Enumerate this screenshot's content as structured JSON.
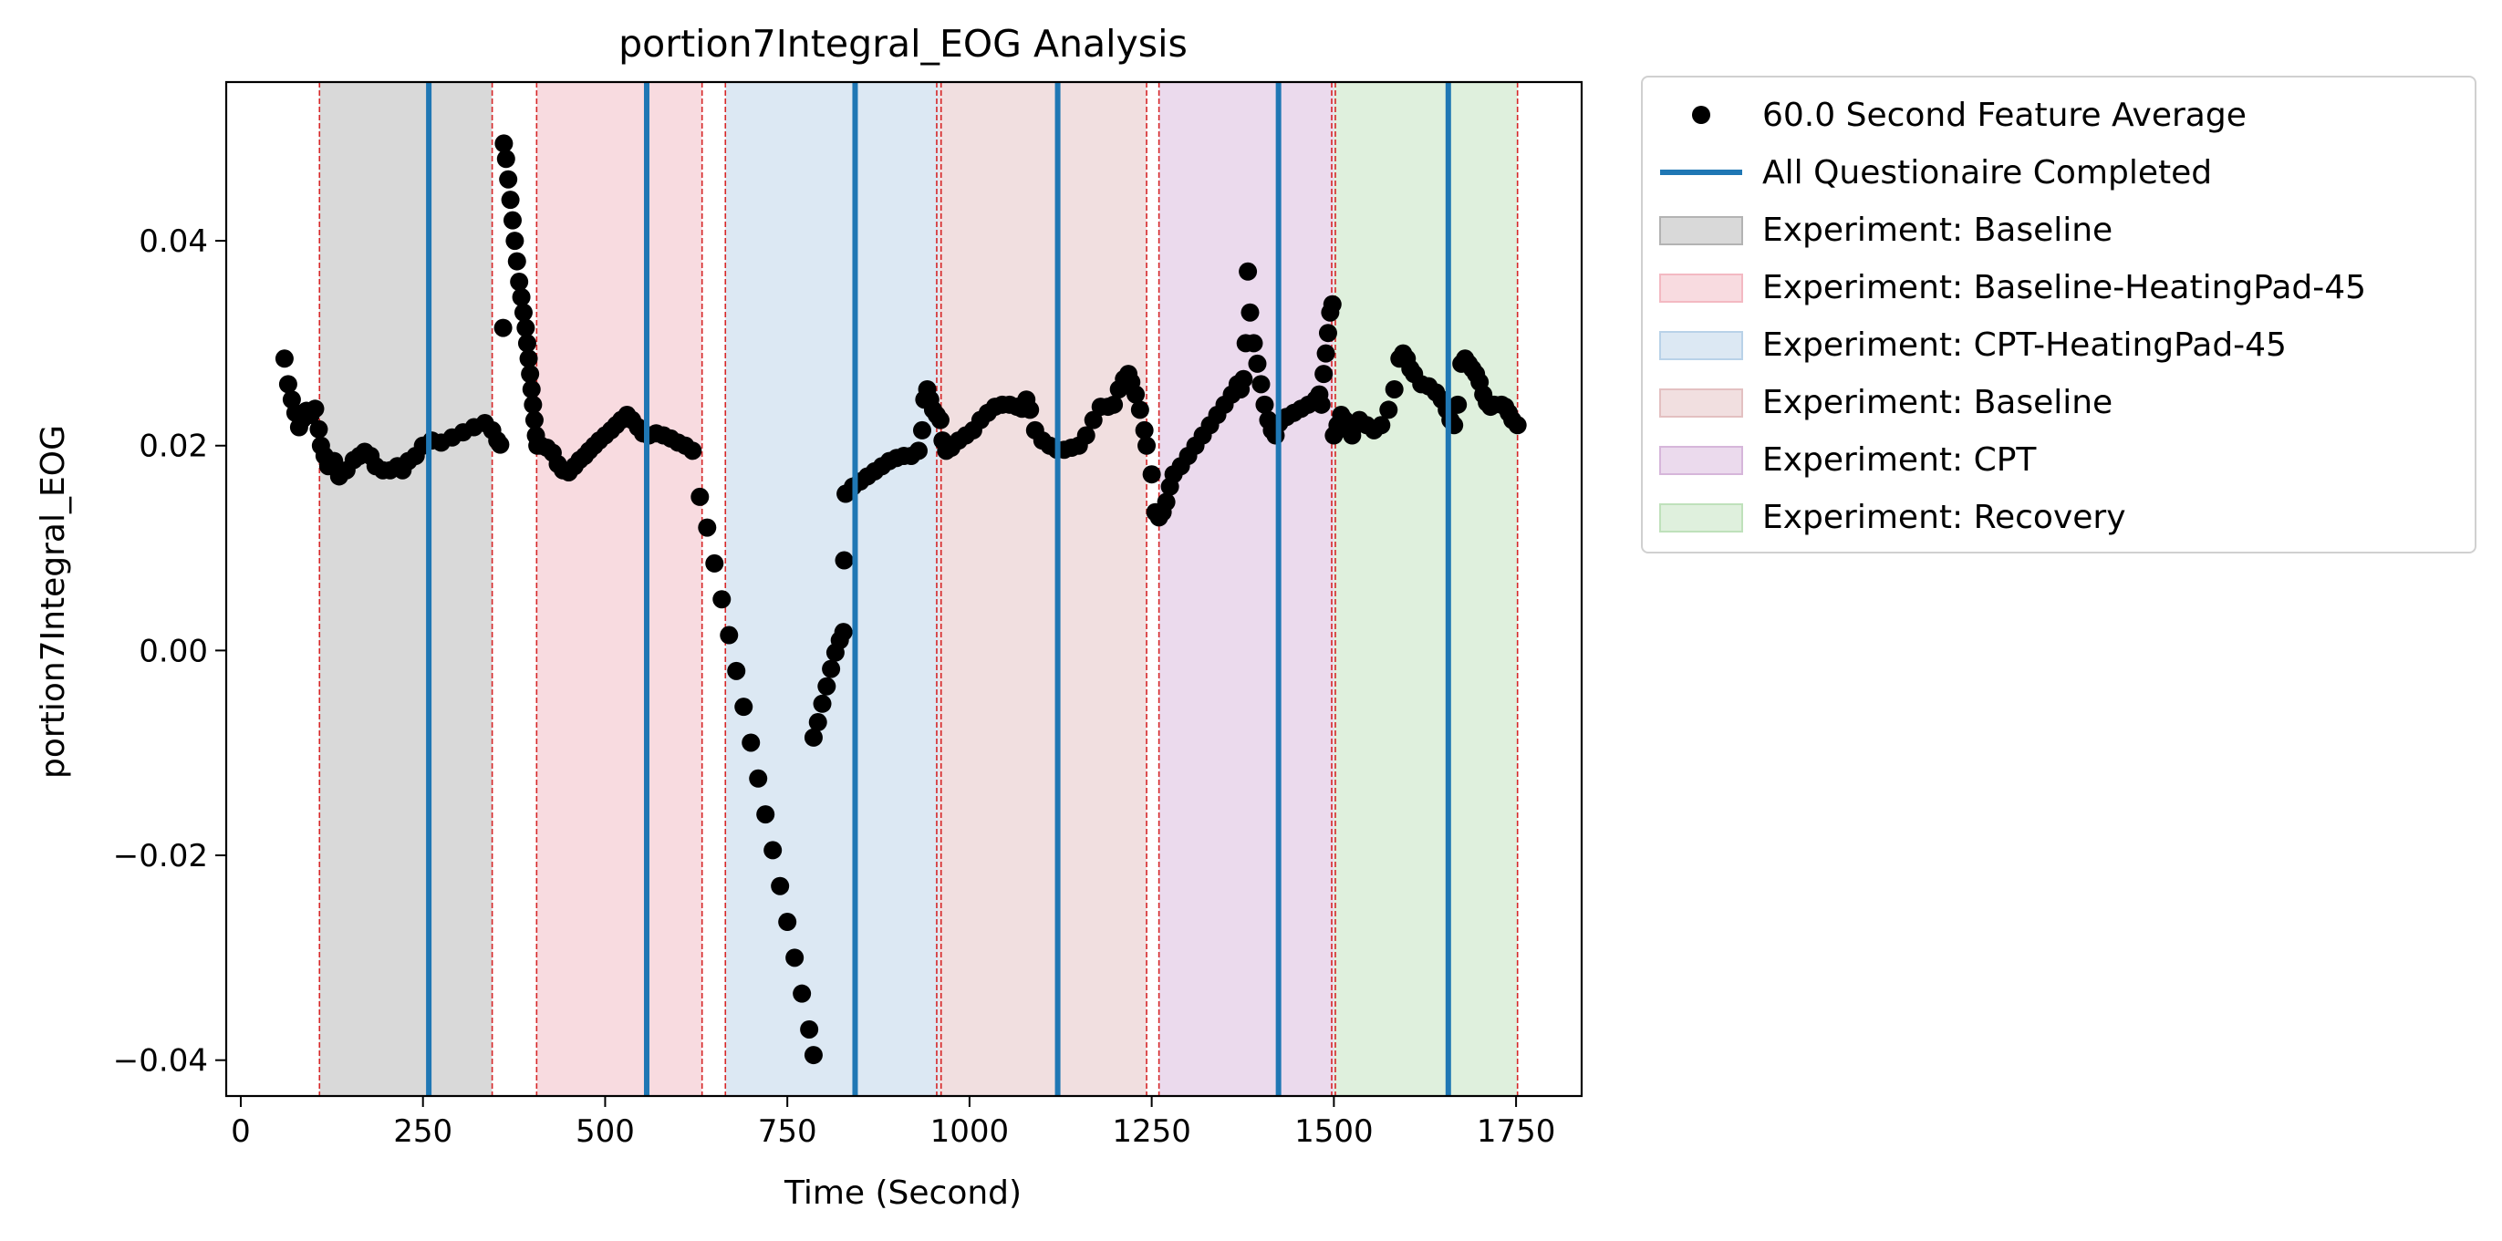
{
  "chart_data": {
    "type": "scatter",
    "title": "portion7Integral_EOG Analysis",
    "xlabel": "Time (Second)",
    "ylabel": "portion7Integral_EOG",
    "xlim": [
      -20,
      1840
    ],
    "ylim": [
      -0.0435,
      0.0555
    ],
    "x_ticks": [
      0,
      250,
      500,
      750,
      1000,
      1250,
      1500,
      1750
    ],
    "x_tick_labels": [
      "0",
      "250",
      "500",
      "750",
      "1000",
      "1250",
      "1500",
      "1750"
    ],
    "y_ticks": [
      -0.04,
      -0.02,
      0.0,
      0.02,
      0.04
    ],
    "y_tick_labels": [
      "−0.04",
      "−0.02",
      "0.00",
      "0.02",
      "0.04"
    ],
    "grid": false,
    "legend_position": "outside-right-top",
    "series": [
      {
        "name": "60.0 Second Feature Average",
        "kind": "scatter",
        "color": "#000000",
        "points": [
          [
            60,
            0.0285
          ],
          [
            65,
            0.026
          ],
          [
            70,
            0.0245
          ],
          [
            75,
            0.0232
          ],
          [
            80,
            0.0218
          ],
          [
            85,
            0.0226
          ],
          [
            90,
            0.0234
          ],
          [
            96,
            0.023
          ],
          [
            102,
            0.0236
          ],
          [
            107,
            0.0216
          ],
          [
            110,
            0.02
          ],
          [
            115,
            0.019
          ],
          [
            120,
            0.018
          ],
          [
            128,
            0.0185
          ],
          [
            135,
            0.017
          ],
          [
            145,
            0.0176
          ],
          [
            155,
            0.0186
          ],
          [
            163,
            0.019
          ],
          [
            170,
            0.0194
          ],
          [
            178,
            0.019
          ],
          [
            185,
            0.018
          ],
          [
            195,
            0.0176
          ],
          [
            205,
            0.0176
          ],
          [
            215,
            0.018
          ],
          [
            222,
            0.0176
          ],
          [
            230,
            0.0185
          ],
          [
            240,
            0.019
          ],
          [
            250,
            0.02
          ],
          [
            262,
            0.0205
          ],
          [
            275,
            0.0203
          ],
          [
            290,
            0.0208
          ],
          [
            305,
            0.0213
          ],
          [
            320,
            0.0218
          ],
          [
            335,
            0.0222
          ],
          [
            345,
            0.0215
          ],
          [
            352,
            0.0205
          ],
          [
            356,
            0.0201
          ],
          [
            361,
            0.0495
          ],
          [
            364,
            0.048
          ],
          [
            367,
            0.046
          ],
          [
            370,
            0.044
          ],
          [
            373,
            0.042
          ],
          [
            376,
            0.04
          ],
          [
            379,
            0.038
          ],
          [
            382,
            0.036
          ],
          [
            385,
            0.0345
          ],
          [
            388,
            0.033
          ],
          [
            391,
            0.0315
          ],
          [
            393,
            0.03
          ],
          [
            395,
            0.0285
          ],
          [
            397,
            0.027
          ],
          [
            399,
            0.0255
          ],
          [
            401,
            0.024
          ],
          [
            403,
            0.0225
          ],
          [
            405,
            0.021
          ],
          [
            407,
            0.02
          ],
          [
            360,
            0.0315
          ],
          [
            412,
            0.02
          ],
          [
            420,
            0.0198
          ],
          [
            428,
            0.0193
          ],
          [
            435,
            0.0182
          ],
          [
            442,
            0.0176
          ],
          [
            450,
            0.0174
          ],
          [
            458,
            0.018
          ],
          [
            465,
            0.0186
          ],
          [
            472,
            0.019
          ],
          [
            478,
            0.0195
          ],
          [
            485,
            0.02
          ],
          [
            492,
            0.0205
          ],
          [
            500,
            0.021
          ],
          [
            508,
            0.0215
          ],
          [
            515,
            0.022
          ],
          [
            522,
            0.0225
          ],
          [
            530,
            0.023
          ],
          [
            537,
            0.0225
          ],
          [
            545,
            0.0218
          ],
          [
            552,
            0.0212
          ],
          [
            560,
            0.021
          ],
          [
            570,
            0.0212
          ],
          [
            580,
            0.021
          ],
          [
            590,
            0.0207
          ],
          [
            600,
            0.0203
          ],
          [
            610,
            0.02
          ],
          [
            620,
            0.0195
          ],
          [
            630,
            0.015
          ],
          [
            640,
            0.012
          ],
          [
            650,
            0.0085
          ],
          [
            660,
            0.005
          ],
          [
            670,
            0.0015
          ],
          [
            680,
            -0.002
          ],
          [
            690,
            -0.0055
          ],
          [
            700,
            -0.009
          ],
          [
            710,
            -0.0125
          ],
          [
            720,
            -0.016
          ],
          [
            730,
            -0.0195
          ],
          [
            740,
            -0.023
          ],
          [
            750,
            -0.0265
          ],
          [
            760,
            -0.03
          ],
          [
            770,
            -0.0335
          ],
          [
            780,
            -0.037
          ],
          [
            786,
            -0.0395
          ],
          [
            786,
            -0.0085
          ],
          [
            792,
            -0.007
          ],
          [
            798,
            -0.0052
          ],
          [
            804,
            -0.0035
          ],
          [
            810,
            -0.0018
          ],
          [
            816,
            -0.0002
          ],
          [
            822,
            0.001
          ],
          [
            827,
            0.0018
          ],
          [
            828,
            0.0088
          ],
          [
            830,
            0.0153
          ],
          [
            840,
            0.016
          ],
          [
            850,
            0.0165
          ],
          [
            860,
            0.017
          ],
          [
            870,
            0.0175
          ],
          [
            880,
            0.018
          ],
          [
            890,
            0.0185
          ],
          [
            900,
            0.0188
          ],
          [
            910,
            0.019
          ],
          [
            920,
            0.019
          ],
          [
            930,
            0.0195
          ],
          [
            935,
            0.0215
          ],
          [
            938,
            0.0245
          ],
          [
            942,
            0.0255
          ],
          [
            946,
            0.0245
          ],
          [
            950,
            0.0235
          ],
          [
            955,
            0.023
          ],
          [
            960,
            0.0225
          ],
          [
            963,
            0.0205
          ],
          [
            968,
            0.0195
          ],
          [
            975,
            0.0198
          ],
          [
            985,
            0.0205
          ],
          [
            995,
            0.021
          ],
          [
            1005,
            0.0215
          ],
          [
            1015,
            0.0225
          ],
          [
            1025,
            0.0232
          ],
          [
            1035,
            0.0238
          ],
          [
            1045,
            0.024
          ],
          [
            1055,
            0.024
          ],
          [
            1065,
            0.0238
          ],
          [
            1072,
            0.0236
          ],
          [
            1078,
            0.0245
          ],
          [
            1083,
            0.0235
          ],
          [
            1090,
            0.0215
          ],
          [
            1100,
            0.0205
          ],
          [
            1110,
            0.02
          ],
          [
            1120,
            0.0196
          ],
          [
            1130,
            0.0196
          ],
          [
            1140,
            0.0198
          ],
          [
            1150,
            0.02
          ],
          [
            1160,
            0.021
          ],
          [
            1170,
            0.0225
          ],
          [
            1180,
            0.0238
          ],
          [
            1190,
            0.0238
          ],
          [
            1198,
            0.024
          ],
          [
            1205,
            0.0255
          ],
          [
            1212,
            0.0265
          ],
          [
            1218,
            0.027
          ],
          [
            1222,
            0.0262
          ],
          [
            1228,
            0.025
          ],
          [
            1234,
            0.0235
          ],
          [
            1240,
            0.0215
          ],
          [
            1243,
            0.02
          ],
          [
            1250,
            0.0172
          ],
          [
            1255,
            0.0135
          ],
          [
            1260,
            0.013
          ],
          [
            1265,
            0.0135
          ],
          [
            1270,
            0.0145
          ],
          [
            1275,
            0.016
          ],
          [
            1280,
            0.0172
          ],
          [
            1290,
            0.018
          ],
          [
            1300,
            0.019
          ],
          [
            1310,
            0.02
          ],
          [
            1320,
            0.021
          ],
          [
            1330,
            0.022
          ],
          [
            1340,
            0.023
          ],
          [
            1350,
            0.024
          ],
          [
            1360,
            0.025
          ],
          [
            1368,
            0.026
          ],
          [
            1372,
            0.0255
          ],
          [
            1376,
            0.0265
          ],
          [
            1379,
            0.03
          ],
          [
            1382,
            0.037
          ],
          [
            1385,
            0.033
          ],
          [
            1390,
            0.03
          ],
          [
            1395,
            0.028
          ],
          [
            1400,
            0.026
          ],
          [
            1405,
            0.024
          ],
          [
            1410,
            0.0225
          ],
          [
            1415,
            0.0215
          ],
          [
            1420,
            0.021
          ],
          [
            1425,
            0.0222
          ],
          [
            1435,
            0.0228
          ],
          [
            1445,
            0.0232
          ],
          [
            1455,
            0.0236
          ],
          [
            1465,
            0.024
          ],
          [
            1475,
            0.0245
          ],
          [
            1480,
            0.025
          ],
          [
            1483,
            0.024
          ],
          [
            1486,
            0.027
          ],
          [
            1489,
            0.029
          ],
          [
            1492,
            0.031
          ],
          [
            1495,
            0.033
          ],
          [
            1498,
            0.0338
          ],
          [
            1500,
            0.021
          ],
          [
            1505,
            0.022
          ],
          [
            1510,
            0.023
          ],
          [
            1515,
            0.0225
          ],
          [
            1520,
            0.0215
          ],
          [
            1525,
            0.021
          ],
          [
            1530,
            0.022
          ],
          [
            1535,
            0.0225
          ],
          [
            1545,
            0.022
          ],
          [
            1555,
            0.0215
          ],
          [
            1565,
            0.022
          ],
          [
            1575,
            0.0235
          ],
          [
            1583,
            0.0255
          ],
          [
            1590,
            0.0285
          ],
          [
            1595,
            0.029
          ],
          [
            1600,
            0.0285
          ],
          [
            1605,
            0.0275
          ],
          [
            1610,
            0.027
          ],
          [
            1620,
            0.026
          ],
          [
            1630,
            0.0258
          ],
          [
            1640,
            0.0252
          ],
          [
            1648,
            0.0245
          ],
          [
            1655,
            0.0235
          ],
          [
            1660,
            0.0225
          ],
          [
            1665,
            0.022
          ],
          [
            1670,
            0.024
          ],
          [
            1675,
            0.028
          ],
          [
            1680,
            0.0285
          ],
          [
            1685,
            0.028
          ],
          [
            1690,
            0.0275
          ],
          [
            1695,
            0.027
          ],
          [
            1700,
            0.0262
          ],
          [
            1705,
            0.025
          ],
          [
            1710,
            0.0242
          ],
          [
            1715,
            0.0238
          ],
          [
            1720,
            0.024
          ],
          [
            1730,
            0.024
          ],
          [
            1735,
            0.0238
          ],
          [
            1740,
            0.0232
          ],
          [
            1745,
            0.0225
          ],
          [
            1752,
            0.022
          ]
        ]
      }
    ],
    "vlines": {
      "name": "All Questionaire Completed",
      "color": "#1f77b4",
      "x": [
        258,
        557,
        843,
        1121,
        1424,
        1657
      ]
    },
    "boundaries": {
      "color": "#d62728",
      "style": "dashed",
      "x": [
        108,
        345,
        406,
        633,
        665,
        955,
        961,
        1243,
        1260,
        1497,
        1502,
        1752
      ]
    },
    "regions": [
      {
        "label": "Experiment: Baseline",
        "start": 108,
        "end": 345,
        "color": "#7f7f7f"
      },
      {
        "label": "Experiment: Baseline-HeatingPad-45",
        "start": 406,
        "end": 633,
        "color": "#e377c2"
      },
      {
        "label": "Experiment: CPT-HeatingPad-45",
        "start": 665,
        "end": 958,
        "color": "#1f77b4"
      },
      {
        "label": "Experiment: Baseline",
        "start": 958,
        "end": 1243,
        "color": "#bc5a5a"
      },
      {
        "label": "Experiment: CPT",
        "start": 1260,
        "end": 1500,
        "color": "#9467bd"
      },
      {
        "label": "Experiment: Recovery",
        "start": 1500,
        "end": 1752,
        "color": "#2ca02c"
      }
    ],
    "region_fills": {
      "#7f7f7f": "#d9d9d9",
      "#e377c2": "#f8dbe0",
      "#1f77b4": "#dce8f3",
      "#bc5a5a": "#f1dfe0",
      "#9467bd": "#ebdaed",
      "#2ca02c": "#dff0dd"
    },
    "legend": [
      {
        "kind": "marker",
        "label": "60.0 Second Feature Average",
        "color": "#000000"
      },
      {
        "kind": "line",
        "label": "All Questionaire Completed",
        "color": "#1f77b4"
      },
      {
        "kind": "patch",
        "label": "Experiment: Baseline",
        "fill": "#d9d9d9",
        "edge": "#b3b3b3"
      },
      {
        "kind": "patch",
        "label": "Experiment: Baseline-HeatingPad-45",
        "fill": "#f8dbe0",
        "edge": "#f3b9c2"
      },
      {
        "kind": "patch",
        "label": "Experiment: CPT-HeatingPad-45",
        "fill": "#dce8f3",
        "edge": "#b9d2e8"
      },
      {
        "kind": "patch",
        "label": "Experiment: Baseline",
        "fill": "#f1dfe0",
        "edge": "#e3c0c1"
      },
      {
        "kind": "patch",
        "label": "Experiment: CPT",
        "fill": "#ebdaed",
        "edge": "#d6b6da"
      },
      {
        "kind": "patch",
        "label": "Experiment: Recovery",
        "fill": "#dff0dd",
        "edge": "#bfe1bb"
      }
    ]
  }
}
